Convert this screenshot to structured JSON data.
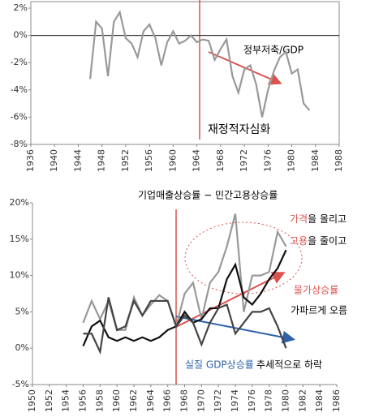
{
  "chart_data": [
    {
      "type": "line",
      "x": [
        1946,
        1947,
        1948,
        1949,
        1950,
        1951,
        1952,
        1953,
        1954,
        1955,
        1956,
        1957,
        1958,
        1959,
        1960,
        1961,
        1962,
        1963,
        1964,
        1965,
        1966,
        1967,
        1968,
        1969,
        1970,
        1971,
        1972,
        1973,
        1974,
        1975,
        1976,
        1977,
        1978,
        1979,
        1980,
        1981,
        1982,
        1983
      ],
      "series": [
        {
          "color": "#999999",
          "values": [
            -3.2,
            1.0,
            0.5,
            -3.0,
            1.0,
            1.7,
            -0.2,
            -0.6,
            -1.6,
            0.3,
            0.8,
            -0.2,
            -2.2,
            -0.5,
            0.3,
            -0.6,
            -0.4,
            0.0,
            -0.5,
            -0.3,
            -0.4,
            -1.8,
            -1.0,
            -0.3,
            -3.0,
            -4.2,
            -2.5,
            -2.2,
            -3.6,
            -6.0,
            -4.0,
            -2.6,
            -1.6,
            -1.2,
            -2.8,
            -2.5,
            -5.0,
            -5.5
          ]
        }
      ],
      "xlim": [
        1936,
        1988
      ],
      "xticks": [
        1936,
        1940,
        1944,
        1948,
        1952,
        1956,
        1960,
        1964,
        1968,
        1972,
        1976,
        1980,
        1984,
        1988
      ],
      "ylim": [
        -8,
        2
      ],
      "yticks": [
        {
          "value": -8,
          "label": "-8%"
        },
        {
          "value": -6,
          "label": "-6%"
        },
        {
          "value": -4,
          "label": "-4%"
        },
        {
          "value": -2,
          "label": "-2%"
        },
        {
          "value": 0,
          "label": "0%"
        },
        {
          "value": 2,
          "label": "2%"
        }
      ],
      "annotations": [
        "정부저축/GDP",
        "재정적자심화"
      ]
    },
    {
      "type": "line",
      "title": "기업매출상승률 − 민간고용상승률",
      "x": [
        1956,
        1957,
        1958,
        1959,
        1960,
        1961,
        1962,
        1963,
        1964,
        1965,
        1966,
        1967,
        1968,
        1969,
        1970,
        1971,
        1972,
        1973,
        1974,
        1975,
        1976,
        1977,
        1978,
        1979,
        1980
      ],
      "series": [
        {
          "color": "#999999",
          "values": [
            3.5,
            6.5,
            4,
            6.5,
            2.5,
            2.5,
            7,
            4.5,
            6,
            7.3,
            6.5,
            3,
            7.5,
            9,
            4,
            9,
            10.5,
            14,
            18.5,
            5,
            10,
            10,
            10.5,
            16,
            14
          ]
        },
        {
          "color": "#111111",
          "values": [
            0.3,
            3,
            3.8,
            1.5,
            1,
            1.5,
            1,
            1.5,
            1,
            1.5,
            2.5,
            3,
            5,
            3.5,
            4,
            5.5,
            5.5,
            9.5,
            11.5,
            7,
            6,
            7.5,
            9.5,
            11,
            13.5
          ]
        },
        {
          "color": "#444444",
          "values": [
            2,
            2,
            -0.5,
            7,
            2.5,
            3,
            6.5,
            4.5,
            6.5,
            6.5,
            6.5,
            3,
            4.5,
            3.5,
            0.5,
            3.5,
            5.5,
            6,
            2,
            3.5,
            5,
            5,
            5.5,
            3,
            0
          ]
        }
      ],
      "xlim": [
        1950,
        1986
      ],
      "xticks": [
        1950,
        1952,
        1954,
        1956,
        1958,
        1960,
        1962,
        1964,
        1966,
        1968,
        1970,
        1972,
        1974,
        1976,
        1978,
        1980,
        1982,
        1984,
        1986
      ],
      "ylim": [
        -5,
        20
      ],
      "yticks": [
        {
          "value": -5,
          "label": "-5%"
        },
        {
          "value": 0,
          "label": "0%"
        },
        {
          "value": 5,
          "label": "5%"
        },
        {
          "value": 10,
          "label": "10%"
        },
        {
          "value": 15,
          "label": "15%"
        },
        {
          "value": 20,
          "label": "20%"
        }
      ],
      "annotations": [
        "가격",
        "을 올리고",
        "고용",
        "을 줄이고",
        "물가상승률",
        "가파르게 오름",
        "실질 GDP상승률",
        "추세적으로 하락"
      ]
    }
  ]
}
